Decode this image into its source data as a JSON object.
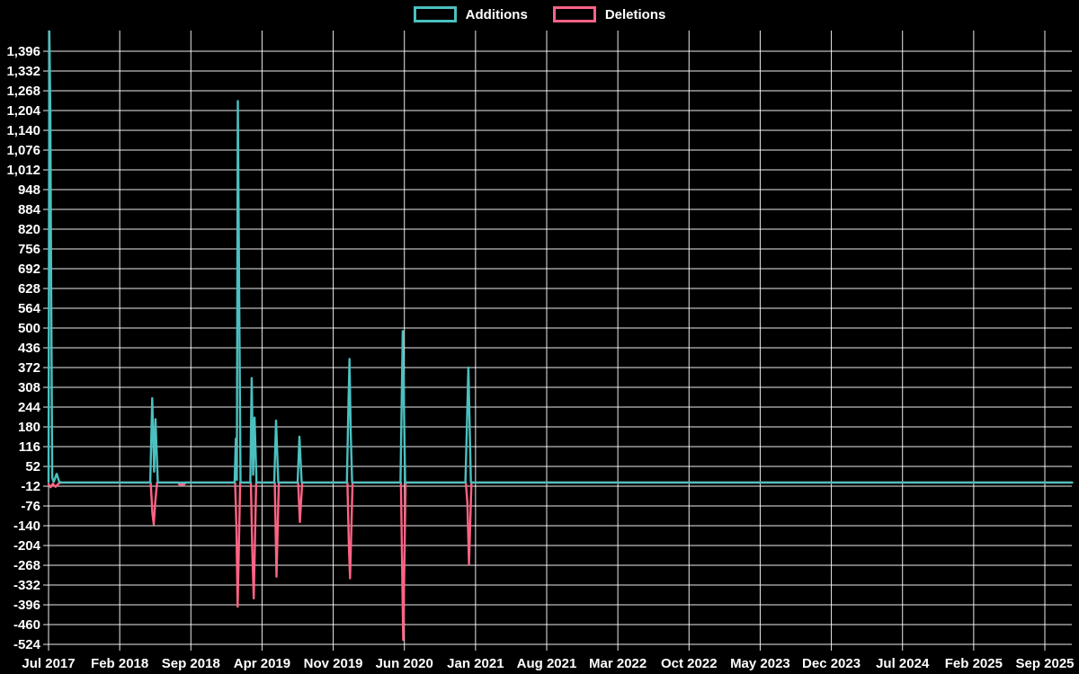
{
  "legend": {
    "items": [
      {
        "label": "Additions",
        "color": "#4bc0c0"
      },
      {
        "label": "Deletions",
        "color": "#ff6384"
      }
    ]
  },
  "chart_data": {
    "type": "line",
    "title": "",
    "background": "#000000",
    "grid": true,
    "legend_position": "top",
    "x_axis": {
      "tick_labels": [
        "Jul 2017",
        "Feb 2018",
        "Sep 2018",
        "Apr 2019",
        "Nov 2019",
        "Jun 2020",
        "Jan 2021",
        "Aug 2021",
        "Mar 2022",
        "Oct 2022",
        "May 2023",
        "Dec 2023",
        "Jul 2024",
        "Feb 2025",
        "Sep 2025"
      ],
      "months_per_tick": 7
    },
    "y_axis": {
      "max": 1396,
      "min": -524,
      "step": 64,
      "tick_labels": [
        "1,396",
        "1,332",
        "1,268",
        "1,204",
        "1,140",
        "1,076",
        "1,012",
        "948",
        "884",
        "820",
        "756",
        "692",
        "628",
        "564",
        "500",
        "436",
        "372",
        "308",
        "244",
        "180",
        "116",
        "52",
        "-12",
        "-76",
        "-140",
        "-204",
        "-268",
        "-332",
        "-396",
        "-460",
        "-524"
      ]
    },
    "baseline": 0,
    "spikes_summary": [
      {
        "date": "Jul 2017",
        "additions": 1460,
        "deletions": -15
      },
      {
        "date": "Aug 2017",
        "additions": 28,
        "deletions": -14
      },
      {
        "date": "Jun 2018",
        "additions": 273,
        "deletions": -135
      },
      {
        "date": "Aug 2018",
        "additions": 0,
        "deletions": -6
      },
      {
        "date": "Jan 2019",
        "additions": 1235,
        "deletions": -402
      },
      {
        "date": "Mar 2019",
        "additions": 338,
        "deletions": -375
      },
      {
        "date": "May 2019",
        "additions": 200,
        "deletions": -305
      },
      {
        "date": "Jul 2019",
        "additions": 148,
        "deletions": -128
      },
      {
        "date": "Dec 2019",
        "additions": 400,
        "deletions": -310
      },
      {
        "date": "May 2020",
        "additions": 490,
        "deletions": -510
      },
      {
        "date": "Dec 2020",
        "additions": 372,
        "deletions": -265
      }
    ],
    "series": [
      {
        "name": "Additions",
        "color": "#4bc0c0",
        "points_month_value": [
          [
            0.0,
            2
          ],
          [
            0.08,
            1460
          ],
          [
            0.18,
            1200
          ],
          [
            0.26,
            637
          ],
          [
            0.36,
            15
          ],
          [
            0.5,
            2
          ],
          [
            0.62,
            12
          ],
          [
            0.8,
            28
          ],
          [
            1.05,
            2
          ],
          [
            1.3,
            0
          ],
          [
            10.0,
            0
          ],
          [
            10.2,
            273
          ],
          [
            10.38,
            35
          ],
          [
            10.52,
            205
          ],
          [
            10.75,
            0
          ],
          [
            18.3,
            0
          ],
          [
            18.42,
            142
          ],
          [
            18.52,
            8
          ],
          [
            18.62,
            1235
          ],
          [
            18.88,
            0
          ],
          [
            19.85,
            0
          ],
          [
            19.98,
            338
          ],
          [
            20.12,
            25
          ],
          [
            20.26,
            210
          ],
          [
            20.46,
            0
          ],
          [
            22.2,
            0
          ],
          [
            22.38,
            200
          ],
          [
            22.6,
            0
          ],
          [
            24.5,
            0
          ],
          [
            24.68,
            148
          ],
          [
            24.9,
            0
          ],
          [
            29.35,
            0
          ],
          [
            29.48,
            222
          ],
          [
            29.6,
            400
          ],
          [
            29.72,
            170
          ],
          [
            29.86,
            0
          ],
          [
            34.62,
            0
          ],
          [
            34.84,
            490
          ],
          [
            35.08,
            0
          ],
          [
            41.0,
            0
          ],
          [
            41.14,
            165
          ],
          [
            41.3,
            372
          ],
          [
            41.54,
            0
          ],
          [
            100.7,
            0
          ]
        ]
      },
      {
        "name": "Deletions",
        "color": "#ff6384",
        "points_month_value": [
          [
            0.0,
            -5
          ],
          [
            0.2,
            -15
          ],
          [
            0.42,
            -4
          ],
          [
            0.7,
            -14
          ],
          [
            1.0,
            -3
          ],
          [
            1.3,
            0
          ],
          [
            10.05,
            0
          ],
          [
            10.22,
            -100
          ],
          [
            10.35,
            -135
          ],
          [
            10.5,
            -62
          ],
          [
            10.68,
            0
          ],
          [
            12.75,
            0
          ],
          [
            12.85,
            -6
          ],
          [
            13.35,
            -6
          ],
          [
            13.48,
            0
          ],
          [
            18.35,
            0
          ],
          [
            18.48,
            -140
          ],
          [
            18.6,
            -402
          ],
          [
            18.85,
            0
          ],
          [
            19.9,
            0
          ],
          [
            20.04,
            -222
          ],
          [
            20.18,
            -375
          ],
          [
            20.42,
            0
          ],
          [
            22.25,
            0
          ],
          [
            22.42,
            -305
          ],
          [
            22.65,
            0
          ],
          [
            24.55,
            0
          ],
          [
            24.72,
            -128
          ],
          [
            24.95,
            0
          ],
          [
            29.4,
            0
          ],
          [
            29.54,
            -205
          ],
          [
            29.66,
            -310
          ],
          [
            29.9,
            0
          ],
          [
            34.66,
            0
          ],
          [
            34.88,
            -510
          ],
          [
            35.12,
            0
          ],
          [
            41.05,
            0
          ],
          [
            41.2,
            -67
          ],
          [
            41.36,
            -265
          ],
          [
            41.6,
            0
          ],
          [
            100.7,
            0
          ]
        ]
      }
    ]
  }
}
